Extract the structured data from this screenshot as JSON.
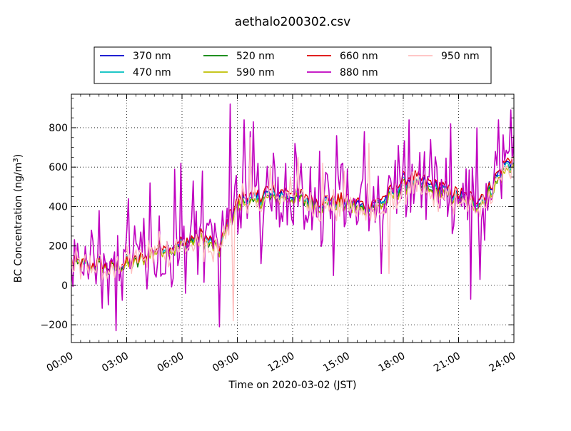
{
  "chart_data": {
    "type": "line",
    "title": "aethalo200302.csv",
    "xlabel": "Time on 2020-03-02 (JST)",
    "ylabel_main": "BC Concentration (ng/m",
    "ylabel_sup": "3",
    "ylabel_close": ")",
    "xlim_hours": [
      0,
      24
    ],
    "ylim": [
      -290,
      970
    ],
    "x_ticks": [
      {
        "hour": 0,
        "label": "00:00"
      },
      {
        "hour": 3,
        "label": "03:00"
      },
      {
        "hour": 6,
        "label": "06:00"
      },
      {
        "hour": 9,
        "label": "09:00"
      },
      {
        "hour": 12,
        "label": "12:00"
      },
      {
        "hour": 15,
        "label": "15:00"
      },
      {
        "hour": 18,
        "label": "18:00"
      },
      {
        "hour": 21,
        "label": "21:00"
      },
      {
        "hour": 24,
        "label": "24:00"
      }
    ],
    "y_ticks": [
      {
        "value": -200,
        "label": "−200"
      },
      {
        "value": 0,
        "label": "0"
      },
      {
        "value": 200,
        "label": "200"
      },
      {
        "value": 400,
        "label": "400"
      },
      {
        "value": 600,
        "label": "600"
      },
      {
        "value": 800,
        "label": "800"
      }
    ],
    "grid": true,
    "legend_position": "top-center",
    "series": [
      {
        "name": "370 nm",
        "color": "#0000cc",
        "role": "smooth",
        "profile_key": "base",
        "scale": 1.0,
        "offset": 2
      },
      {
        "name": "470 nm",
        "color": "#00bfbf",
        "role": "smooth",
        "profile_key": "base",
        "scale": 0.98,
        "offset": 0
      },
      {
        "name": "520 nm",
        "color": "#008000",
        "role": "smooth",
        "profile_key": "base",
        "scale": 0.96,
        "offset": -4
      },
      {
        "name": "590 nm",
        "color": "#bfbf00",
        "role": "smooth",
        "profile_key": "base",
        "scale": 0.95,
        "offset": -3
      },
      {
        "name": "660 nm",
        "color": "#dd0000",
        "role": "smooth",
        "profile_key": "base",
        "scale": 1.02,
        "offset": 4
      },
      {
        "name": "880 nm",
        "color": "#bf00bf",
        "role": "noisy",
        "profile_key": "noisy",
        "scale": 1.0,
        "offset": 0
      },
      {
        "name": "950 nm",
        "color": "#ffbfbf",
        "role": "mid",
        "profile_key": "pink",
        "scale": 1.0,
        "offset": 0
      }
    ],
    "profiles": {
      "base": [
        [
          0.0,
          120
        ],
        [
          0.5,
          110
        ],
        [
          1.0,
          95
        ],
        [
          1.5,
          110
        ],
        [
          2.0,
          85
        ],
        [
          2.5,
          100
        ],
        [
          3.0,
          110
        ],
        [
          3.5,
          120
        ],
        [
          4.0,
          150
        ],
        [
          4.5,
          180
        ],
        [
          5.0,
          200
        ],
        [
          5.5,
          190
        ],
        [
          6.0,
          210
        ],
        [
          6.5,
          230
        ],
        [
          7.0,
          250
        ],
        [
          7.5,
          220
        ],
        [
          8.0,
          180
        ],
        [
          8.5,
          320
        ],
        [
          9.0,
          420
        ],
        [
          9.5,
          450
        ],
        [
          10.0,
          430
        ],
        [
          10.5,
          470
        ],
        [
          11.0,
          460
        ],
        [
          11.5,
          470
        ],
        [
          12.0,
          460
        ],
        [
          12.5,
          450
        ],
        [
          13.0,
          440
        ],
        [
          13.5,
          420
        ],
        [
          14.0,
          430
        ],
        [
          14.5,
          430
        ],
        [
          15.0,
          420
        ],
        [
          15.5,
          410
        ],
        [
          16.0,
          400
        ],
        [
          16.5,
          420
        ],
        [
          17.0,
          440
        ],
        [
          17.5,
          480
        ],
        [
          18.0,
          530
        ],
        [
          18.5,
          540
        ],
        [
          19.0,
          520
        ],
        [
          19.5,
          500
        ],
        [
          20.0,
          490
        ],
        [
          20.5,
          470
        ],
        [
          21.0,
          450
        ],
        [
          21.5,
          440
        ],
        [
          22.0,
          430
        ],
        [
          22.5,
          460
        ],
        [
          23.0,
          540
        ],
        [
          23.5,
          610
        ],
        [
          24.0,
          640
        ]
      ],
      "pink": [
        [
          0.0,
          100
        ],
        [
          0.5,
          90
        ],
        [
          1.0,
          80
        ],
        [
          1.5,
          100
        ],
        [
          2.0,
          70
        ],
        [
          2.5,
          85
        ],
        [
          3.0,
          110
        ],
        [
          3.5,
          130
        ],
        [
          4.0,
          160
        ],
        [
          4.5,
          180
        ],
        [
          5.0,
          190
        ],
        [
          5.5,
          180
        ],
        [
          6.0,
          200
        ],
        [
          6.5,
          220
        ],
        [
          7.0,
          230
        ],
        [
          7.5,
          180
        ],
        [
          8.0,
          150
        ],
        [
          8.5,
          310
        ],
        [
          9.0,
          430
        ],
        [
          9.5,
          460
        ],
        [
          10.0,
          400
        ],
        [
          10.5,
          430
        ],
        [
          11.0,
          450
        ],
        [
          11.5,
          460
        ],
        [
          12.0,
          460
        ],
        [
          12.5,
          420
        ],
        [
          13.0,
          410
        ],
        [
          13.5,
          400
        ],
        [
          14.0,
          410
        ],
        [
          14.5,
          390
        ],
        [
          15.0,
          390
        ],
        [
          15.5,
          380
        ],
        [
          16.0,
          370
        ],
        [
          16.5,
          380
        ],
        [
          17.0,
          400
        ],
        [
          17.5,
          440
        ],
        [
          18.0,
          490
        ],
        [
          18.5,
          500
        ],
        [
          19.0,
          470
        ],
        [
          19.5,
          450
        ],
        [
          20.0,
          440
        ],
        [
          20.5,
          430
        ],
        [
          21.0,
          410
        ],
        [
          21.5,
          400
        ],
        [
          22.0,
          390
        ],
        [
          22.5,
          430
        ],
        [
          23.0,
          520
        ],
        [
          23.5,
          590
        ],
        [
          24.0,
          610
        ]
      ],
      "noisy": [
        [
          0.0,
          110
        ],
        [
          0.5,
          90
        ],
        [
          1.0,
          80
        ],
        [
          1.5,
          90
        ],
        [
          2.0,
          60
        ],
        [
          2.5,
          80
        ],
        [
          3.0,
          100
        ],
        [
          3.5,
          120
        ],
        [
          4.0,
          140
        ],
        [
          4.5,
          170
        ],
        [
          5.0,
          180
        ],
        [
          5.5,
          170
        ],
        [
          6.0,
          200
        ],
        [
          6.5,
          220
        ],
        [
          7.0,
          240
        ],
        [
          7.5,
          200
        ],
        [
          8.0,
          160
        ],
        [
          8.5,
          320
        ],
        [
          9.0,
          420
        ],
        [
          9.5,
          440
        ],
        [
          10.0,
          420
        ],
        [
          10.5,
          440
        ],
        [
          11.0,
          450
        ],
        [
          11.5,
          450
        ],
        [
          12.0,
          450
        ],
        [
          12.5,
          430
        ],
        [
          13.0,
          420
        ],
        [
          13.5,
          400
        ],
        [
          14.0,
          410
        ],
        [
          14.5,
          410
        ],
        [
          15.0,
          400
        ],
        [
          15.5,
          390
        ],
        [
          16.0,
          380
        ],
        [
          16.5,
          400
        ],
        [
          17.0,
          420
        ],
        [
          17.5,
          460
        ],
        [
          18.0,
          510
        ],
        [
          18.5,
          510
        ],
        [
          19.0,
          500
        ],
        [
          19.5,
          480
        ],
        [
          20.0,
          470
        ],
        [
          20.5,
          450
        ],
        [
          21.0,
          430
        ],
        [
          21.5,
          420
        ],
        [
          22.0,
          410
        ],
        [
          22.5,
          440
        ],
        [
          23.0,
          530
        ],
        [
          23.5,
          600
        ],
        [
          24.0,
          630
        ]
      ]
    },
    "noise_amplitude": {
      "smooth": 35,
      "mid": 80,
      "noisy": 230
    },
    "spikes_880": [
      [
        1.1,
        280
      ],
      [
        1.5,
        380
      ],
      [
        2.4,
        -230
      ],
      [
        3.1,
        440
      ],
      [
        3.9,
        340
      ],
      [
        4.3,
        520
      ],
      [
        5.6,
        590
      ],
      [
        5.9,
        620
      ],
      [
        6.6,
        530
      ],
      [
        7.1,
        580
      ],
      [
        8.0,
        560
      ],
      [
        8.0,
        -210
      ],
      [
        8.6,
        920
      ],
      [
        9.4,
        840
      ],
      [
        9.7,
        780
      ],
      [
        9.9,
        830
      ],
      [
        12.1,
        720
      ],
      [
        13.5,
        680
      ],
      [
        14.4,
        760
      ],
      [
        14.7,
        620
      ],
      [
        15.0,
        590
      ],
      [
        15.9,
        780
      ],
      [
        17.7,
        710
      ],
      [
        18.3,
        840
      ],
      [
        19.5,
        740
      ],
      [
        20.6,
        820
      ],
      [
        22.0,
        800
      ],
      [
        23.2,
        840
      ],
      [
        23.8,
        890
      ],
      [
        14.2,
        50
      ],
      [
        16.8,
        60
      ],
      [
        21.7,
        -70
      ],
      [
        22.2,
        30
      ],
      [
        10.3,
        110
      ]
    ],
    "spikes_950": [
      [
        8.0,
        210
      ],
      [
        8.8,
        -180
      ],
      [
        9.7,
        750
      ],
      [
        10.8,
        610
      ],
      [
        11.9,
        550
      ],
      [
        12.3,
        650
      ],
      [
        13.6,
        620
      ],
      [
        17.2,
        60
      ],
      [
        14.8,
        580
      ],
      [
        16.1,
        720
      ]
    ]
  }
}
